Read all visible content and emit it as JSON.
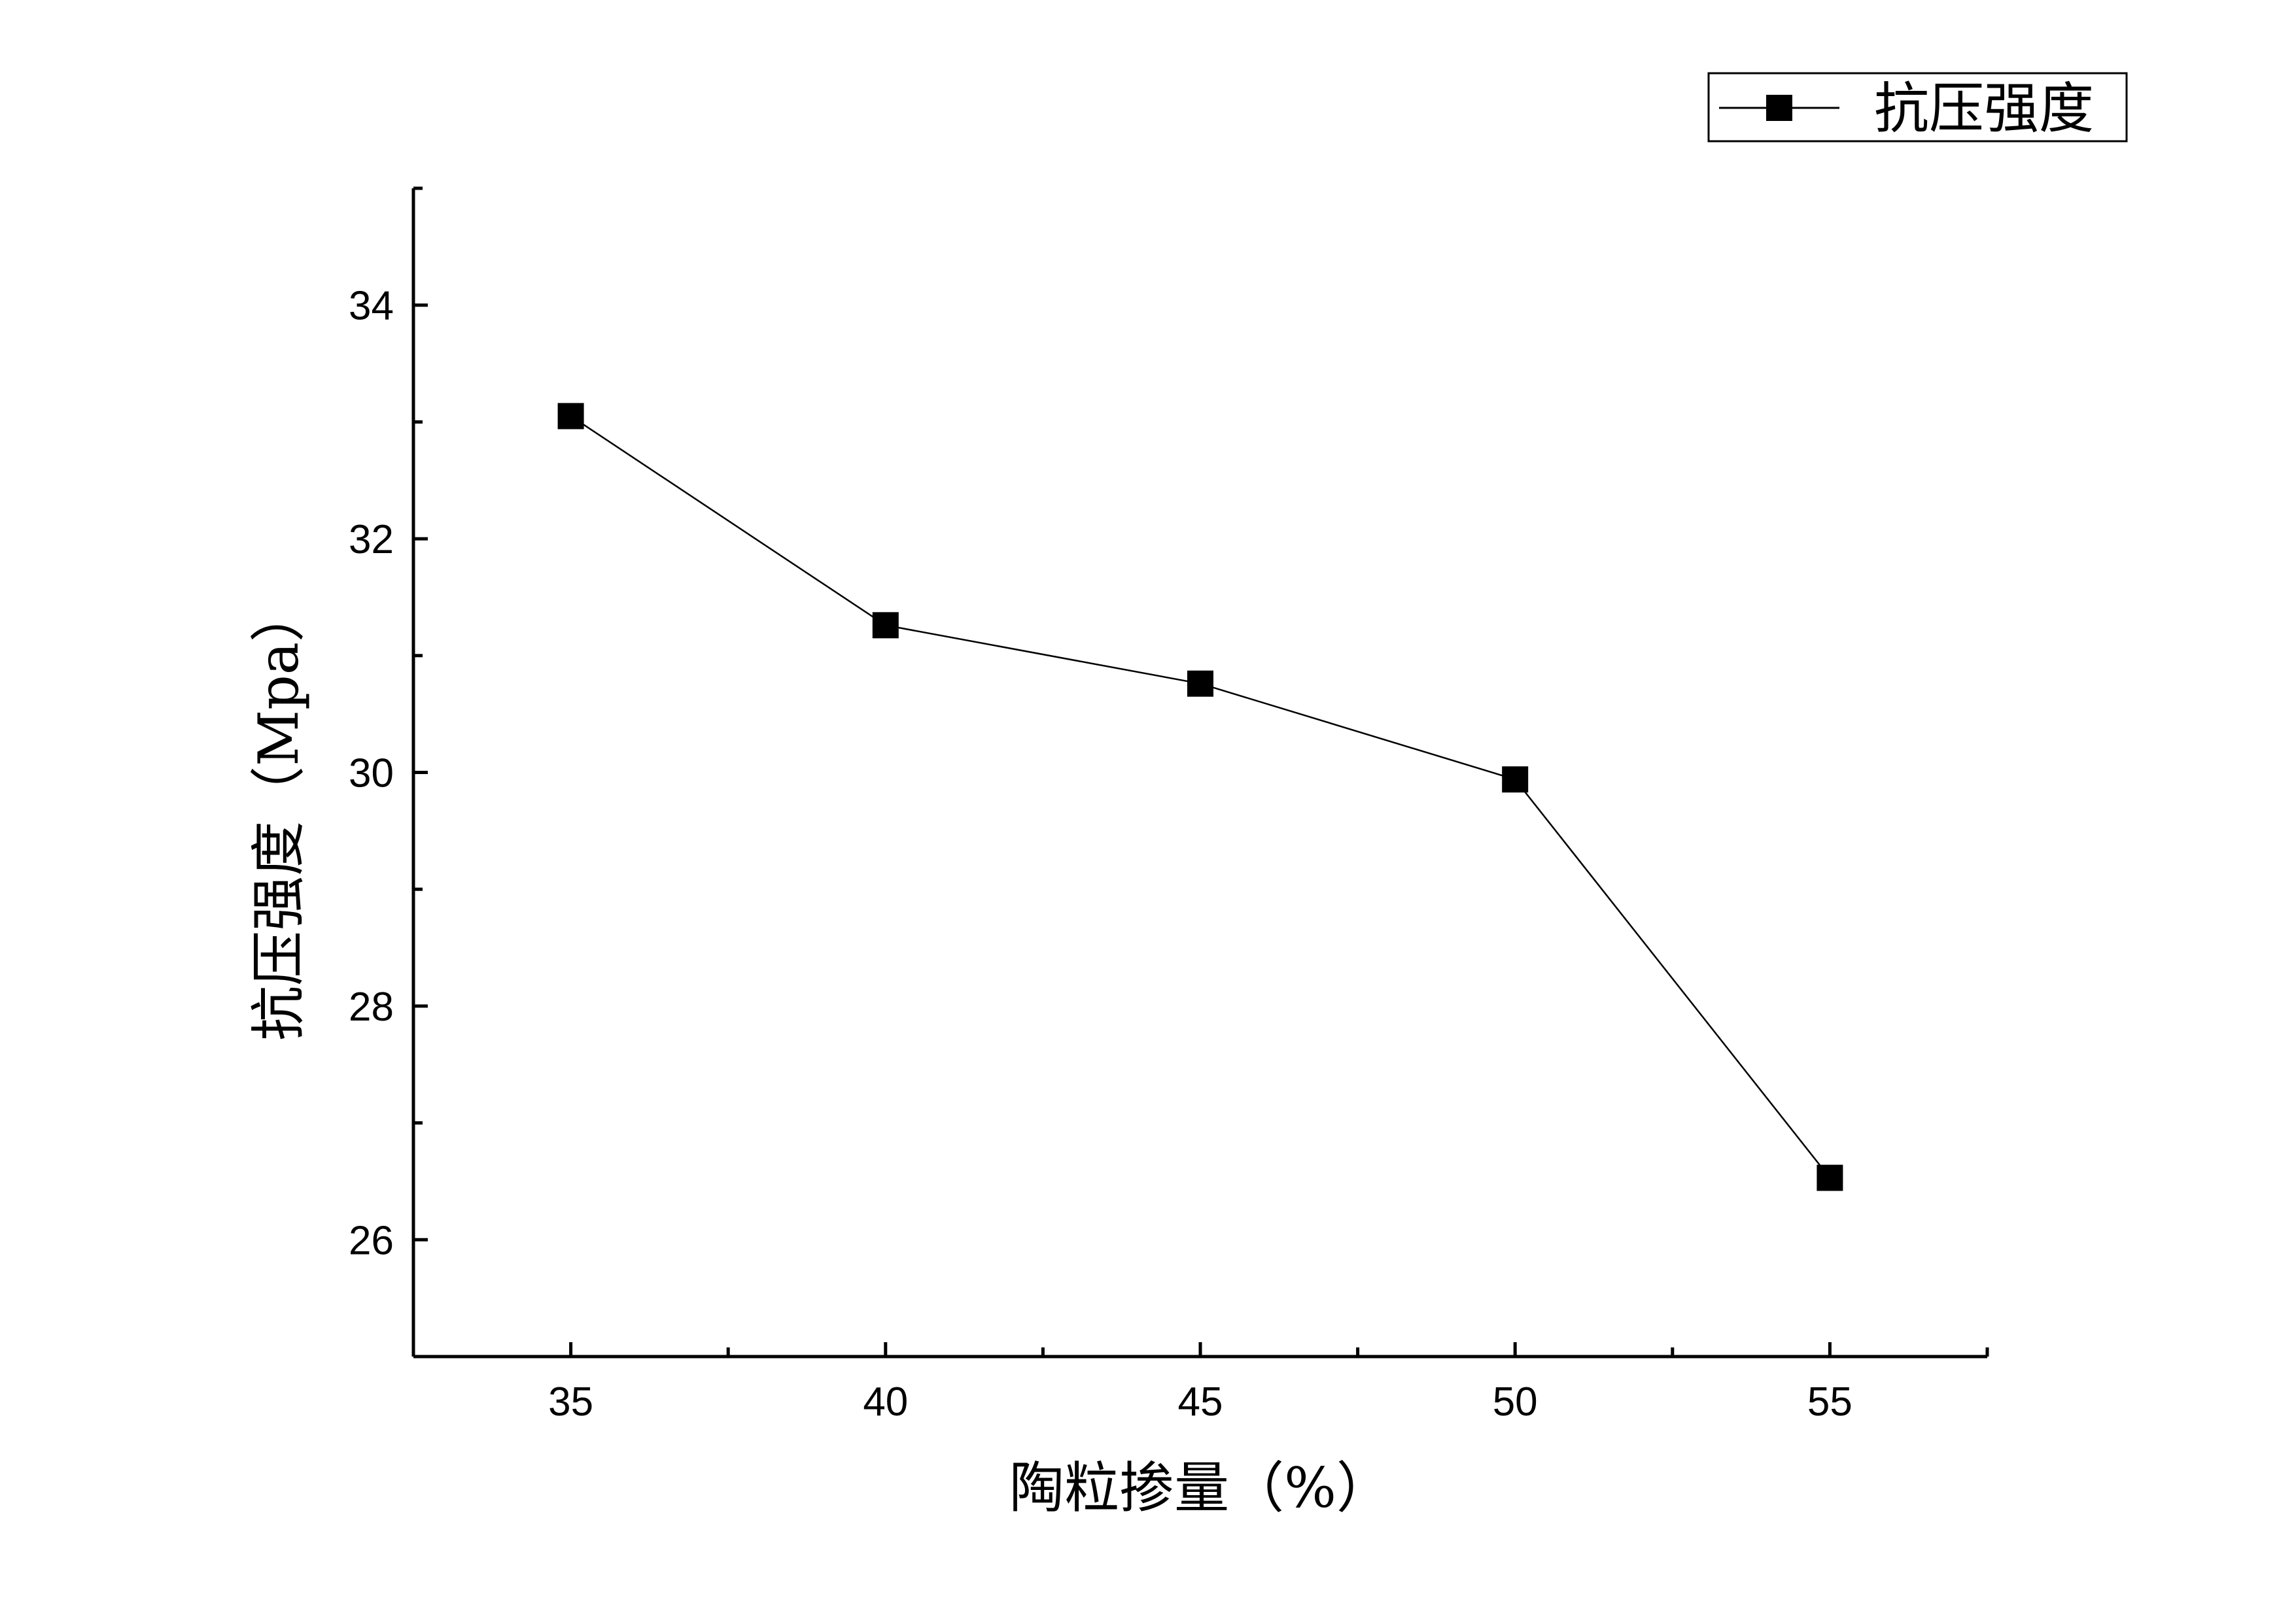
{
  "chart_data": {
    "type": "line",
    "title": "",
    "xlabel": "陶粒掺量（%）",
    "ylabel": "抗压强度（Mpa）",
    "xlim": [
      32.5,
      57.5
    ],
    "ylim": [
      25,
      35
    ],
    "x_ticks": [
      35,
      40,
      45,
      50,
      55
    ],
    "y_ticks": [
      26,
      28,
      30,
      32,
      34
    ],
    "grid": false,
    "legend_position": "top-right",
    "series": [
      {
        "name": "抗压强度",
        "marker": "square",
        "color": "#000000",
        "x": [
          35,
          40,
          45,
          50,
          55
        ],
        "y": [
          33.05,
          31.26,
          30.76,
          29.94,
          26.53
        ]
      }
    ]
  }
}
